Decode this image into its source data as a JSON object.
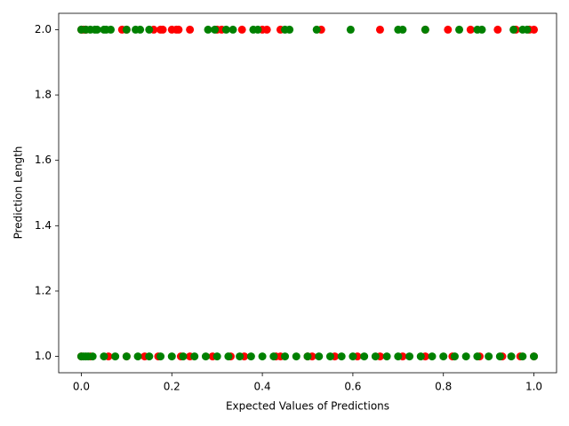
{
  "chart_data": {
    "type": "scatter",
    "x_label": "Expected Values of Predictions",
    "y_label": "Prediction Length",
    "xlim": [
      -0.05,
      1.05
    ],
    "ylim": [
      0.95,
      2.05
    ],
    "xticks": [
      {
        "value": 0,
        "label": "0.0"
      },
      0.2,
      0.4,
      0.6,
      0.8,
      {
        "value": 1,
        "label": "1.0"
      }
    ],
    "yticks": [
      {
        "value": 1,
        "label": "1.0"
      },
      1.2,
      1.4,
      1.6,
      1.8,
      {
        "value": 2,
        "label": "2.0"
      }
    ],
    "grid": false,
    "series": [
      {
        "color": "#ff0000",
        "x": [
          0.0,
          0.005,
          0.01,
          0.09,
          0.1,
          0.16,
          0.175,
          0.18,
          0.2,
          0.21,
          0.215,
          0.24,
          0.3,
          0.31,
          0.355,
          0.4,
          0.41,
          0.44,
          0.53,
          0.66,
          0.76,
          0.81,
          0.86,
          0.92,
          0.96,
          0.99,
          1.0,
          0.0,
          0.02,
          0.06,
          0.1,
          0.14,
          0.17,
          0.22,
          0.24,
          0.29,
          0.33,
          0.36,
          0.43,
          0.44,
          0.5,
          0.51,
          0.56,
          0.61,
          0.66,
          0.71,
          0.76,
          0.82,
          0.88,
          0.93,
          0.97,
          1.0
        ],
        "y": [
          2,
          2,
          2,
          2,
          2,
          2,
          2,
          2,
          2,
          2,
          2,
          2,
          2,
          2,
          2,
          2,
          2,
          2,
          2,
          2,
          2,
          2,
          2,
          2,
          2,
          2,
          2,
          1,
          1,
          1,
          1,
          1,
          1,
          1,
          1,
          1,
          1,
          1,
          1,
          1,
          1,
          1,
          1,
          1,
          1,
          1,
          1,
          1,
          1,
          1,
          1,
          1
        ]
      },
      {
        "color": "#008000",
        "x": [
          0.0,
          0.01,
          0.02,
          0.03,
          0.035,
          0.05,
          0.055,
          0.065,
          0.1,
          0.12,
          0.13,
          0.15,
          0.28,
          0.295,
          0.32,
          0.335,
          0.38,
          0.39,
          0.45,
          0.46,
          0.52,
          0.595,
          0.7,
          0.71,
          0.76,
          0.835,
          0.875,
          0.885,
          0.955,
          0.975,
          0.985,
          0.0,
          0.005,
          0.01,
          0.015,
          0.025,
          0.05,
          0.075,
          0.1,
          0.125,
          0.15,
          0.175,
          0.2,
          0.225,
          0.25,
          0.275,
          0.3,
          0.325,
          0.35,
          0.375,
          0.4,
          0.425,
          0.45,
          0.475,
          0.5,
          0.525,
          0.55,
          0.575,
          0.6,
          0.625,
          0.65,
          0.675,
          0.7,
          0.725,
          0.75,
          0.775,
          0.8,
          0.825,
          0.85,
          0.875,
          0.9,
          0.925,
          0.95,
          0.975,
          1.0
        ],
        "y": [
          2,
          2,
          2,
          2,
          2,
          2,
          2,
          2,
          2,
          2,
          2,
          2,
          2,
          2,
          2,
          2,
          2,
          2,
          2,
          2,
          2,
          2,
          2,
          2,
          2,
          2,
          2,
          2,
          2,
          2,
          2,
          1,
          1,
          1,
          1,
          1,
          1,
          1,
          1,
          1,
          1,
          1,
          1,
          1,
          1,
          1,
          1,
          1,
          1,
          1,
          1,
          1,
          1,
          1,
          1,
          1,
          1,
          1,
          1,
          1,
          1,
          1,
          1,
          1,
          1,
          1,
          1,
          1,
          1,
          1,
          1,
          1,
          1,
          1,
          1
        ]
      }
    ]
  }
}
